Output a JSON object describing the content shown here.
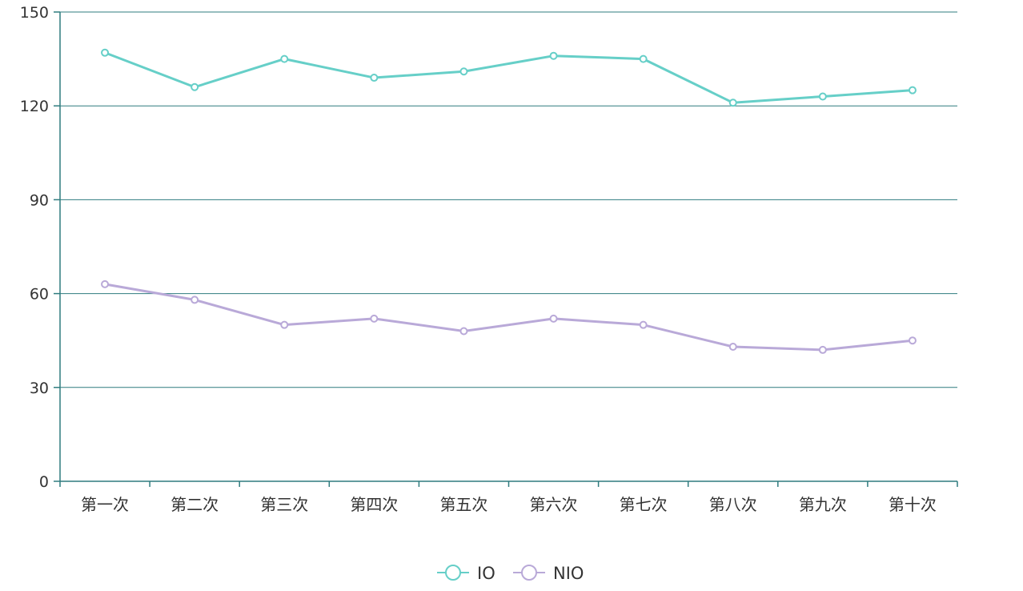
{
  "chart_data": {
    "type": "line",
    "categories": [
      "第一次",
      "第二次",
      "第三次",
      "第四次",
      "第五次",
      "第六次",
      "第七次",
      "第八次",
      "第九次",
      "第十次"
    ],
    "series": [
      {
        "name": "IO",
        "color": "#66cfc8",
        "values": [
          137,
          126,
          135,
          129,
          131,
          136,
          135,
          121,
          123,
          125
        ]
      },
      {
        "name": "NIO",
        "color": "#b9a9d8",
        "values": [
          63,
          58,
          50,
          52,
          48,
          52,
          50,
          43,
          42,
          45
        ]
      }
    ],
    "ylim": [
      0,
      150
    ],
    "yticks": [
      0,
      30,
      60,
      90,
      120,
      150
    ],
    "grid": true,
    "legend": "bottom-center",
    "axis_color": "#2f7c7f",
    "text_color": "#333333"
  }
}
